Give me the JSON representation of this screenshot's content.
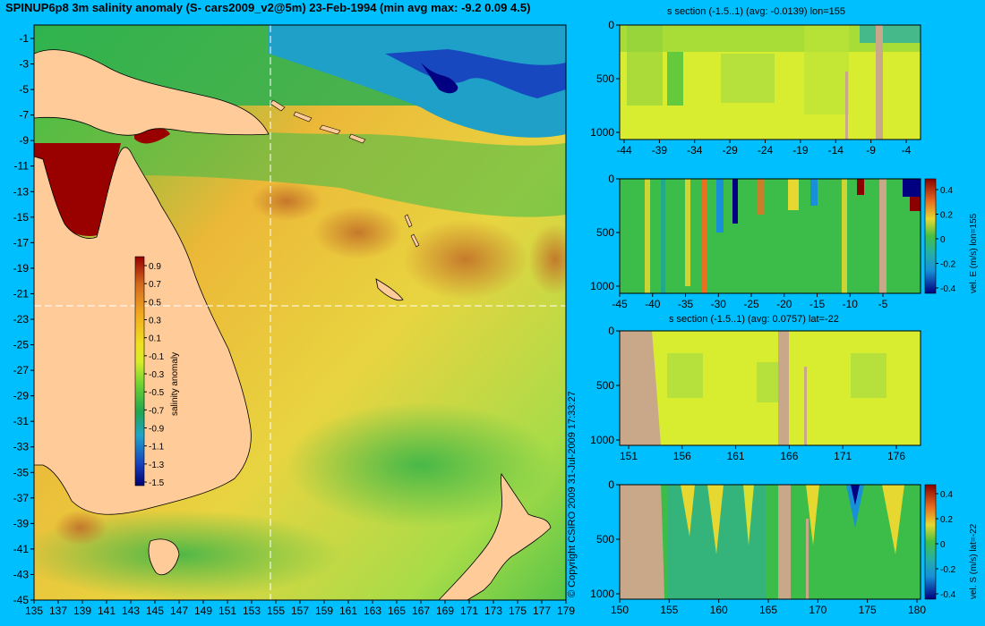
{
  "title": "SPINUP6p8 3m salinity anomaly (S- cars2009_v2@5m) 23-Feb-1994 (min avg max: -9.2 0.09 4.5)",
  "copyright": "© Copyright CSIRO 2009   31-Jul-2009 17:33:27",
  "colors": {
    "background": "#00bfff",
    "land": "#ffcc99",
    "section_land": "#c8a888",
    "crosshair": "#ffffff"
  },
  "chart_data": [
    {
      "type": "heatmap",
      "name": "map",
      "x_ticks": [
        "135",
        "137",
        "139",
        "141",
        "143",
        "145",
        "147",
        "149",
        "151",
        "153",
        "155",
        "157",
        "159",
        "161",
        "163",
        "165",
        "167",
        "169",
        "171",
        "173",
        "175",
        "177",
        "179"
      ],
      "y_ticks": [
        "-1",
        "-3",
        "-5",
        "-7",
        "-9",
        "-11",
        "-13",
        "-15",
        "-17",
        "-19",
        "-21",
        "-23",
        "-25",
        "-27",
        "-29",
        "-31",
        "-33",
        "-35",
        "-37",
        "-39",
        "-41",
        "-43",
        "-45"
      ],
      "xlim": [
        134.5,
        179.5
      ],
      "ylim": [
        -45,
        0.5
      ],
      "crosshair": {
        "lon": 155,
        "lat": -22
      },
      "colorbar": {
        "label": "salinity anomaly",
        "ticks": [
          "0.9",
          "0.7",
          "0.5",
          "0.3",
          "0.1",
          "-0.1",
          "-0.3",
          "-0.5",
          "-0.7",
          "-0.9",
          "-1.1",
          "-1.3",
          "-1.5"
        ]
      }
    },
    {
      "type": "heatmap",
      "name": "section-1",
      "title": "s section (-1.5..1) (avg: -0.0139) lon=155",
      "x_ticks": [
        "-44",
        "-39",
        "-34",
        "-29",
        "-24",
        "-19",
        "-14",
        "-9",
        "-4"
      ],
      "y_ticks": [
        "0",
        "500",
        "1000"
      ]
    },
    {
      "type": "heatmap",
      "name": "section-2",
      "x_ticks": [
        "-45",
        "-40",
        "-35",
        "-30",
        "-25",
        "-20",
        "-15",
        "-10",
        "-5"
      ],
      "y_ticks": [
        "0",
        "500",
        "1000"
      ],
      "colorbar": {
        "label": "vel. E (m/s) lon=155",
        "ticks": [
          "0.4",
          "0.2",
          "0",
          "-0.2",
          "-0.4"
        ]
      }
    },
    {
      "type": "heatmap",
      "name": "section-3",
      "title": "s section (-1.5..1) (avg: 0.0757) lat=-22",
      "x_ticks": [
        "151",
        "156",
        "161",
        "166",
        "171",
        "176"
      ],
      "y_ticks": [
        "0",
        "500",
        "1000"
      ]
    },
    {
      "type": "heatmap",
      "name": "section-4",
      "x_ticks": [
        "150",
        "155",
        "160",
        "165",
        "170",
        "175",
        "180"
      ],
      "y_ticks": [
        "0",
        "500",
        "1000"
      ],
      "colorbar": {
        "label": "vel. S (m/s) lat=-22",
        "ticks": [
          "0.4",
          "0.2",
          "0",
          "-0.2",
          "-0.4"
        ]
      }
    }
  ]
}
